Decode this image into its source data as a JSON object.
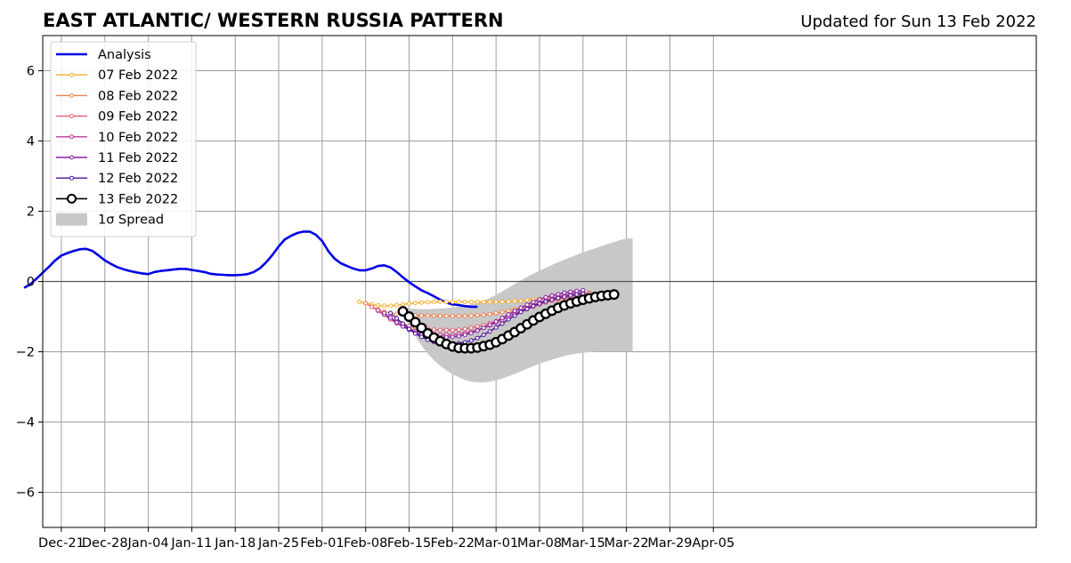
{
  "chart_data": {
    "type": "line",
    "title": "EAST ATLANTIC/ WESTERN RUSSIA PATTERN",
    "subtitle": "Updated for Sun 13 Feb 2022",
    "xlabel": "",
    "ylabel": "",
    "xlim": [
      -3,
      157
    ],
    "ylim": [
      -7,
      7
    ],
    "grid": true,
    "legend_position": "top-left",
    "x_unit": "days since Dec-21",
    "x_ticks": [
      {
        "x": 0,
        "label": "Dec-21"
      },
      {
        "x": 7,
        "label": "Dec-28"
      },
      {
        "x": 14,
        "label": "Jan-04"
      },
      {
        "x": 21,
        "label": "Jan-11"
      },
      {
        "x": 28,
        "label": "Jan-18"
      },
      {
        "x": 35,
        "label": "Jan-25"
      },
      {
        "x": 42,
        "label": "Feb-01"
      },
      {
        "x": 49,
        "label": "Feb-08"
      },
      {
        "x": 56,
        "label": "Feb-15"
      },
      {
        "x": 63,
        "label": "Feb-22"
      },
      {
        "x": 70,
        "label": "Mar-01"
      },
      {
        "x": 77,
        "label": "Mar-08"
      },
      {
        "x": 84,
        "label": "Mar-15"
      },
      {
        "x": 91,
        "label": "Mar-22"
      },
      {
        "x": 98,
        "label": "Mar-29"
      },
      {
        "x": 105,
        "label": "Apr-05"
      }
    ],
    "y_ticks": [
      {
        "y": -6,
        "label": "−6"
      },
      {
        "y": -4,
        "label": "−4"
      },
      {
        "y": -2,
        "label": "−2"
      },
      {
        "y": 0,
        "label": "0"
      },
      {
        "y": 2,
        "label": "2"
      },
      {
        "y": 4,
        "label": "4"
      },
      {
        "y": 6,
        "label": "6"
      }
    ],
    "analysis": {
      "name": "Analysis",
      "color": "#0000e6",
      "start_x": -6,
      "values": [
        -0.18,
        -0.08,
        0.08,
        0.25,
        0.42,
        0.6,
        0.74,
        0.81,
        0.87,
        0.92,
        0.93,
        0.87,
        0.74,
        0.6,
        0.5,
        0.41,
        0.35,
        0.3,
        0.26,
        0.23,
        0.21,
        0.27,
        0.3,
        0.32,
        0.34,
        0.36,
        0.36,
        0.33,
        0.3,
        0.27,
        0.22,
        0.2,
        0.19,
        0.18,
        0.18,
        0.19,
        0.21,
        0.27,
        0.38,
        0.55,
        0.76,
        1.0,
        1.2,
        1.3,
        1.38,
        1.42,
        1.42,
        1.33,
        1.15,
        0.86,
        0.65,
        0.52,
        0.44,
        0.37,
        0.32,
        0.32,
        0.37,
        0.44,
        0.46,
        0.4,
        0.27,
        0.12,
        -0.02,
        -0.14,
        -0.25,
        -0.33,
        -0.42,
        -0.52,
        -0.6,
        -0.65,
        -0.67,
        -0.7,
        -0.72,
        -0.72
      ]
    },
    "forecasts": [
      {
        "name": "07 Feb 2022",
        "color": "#f6ae2d",
        "start_x": 48,
        "values": [
          -0.58,
          -0.62,
          -0.65,
          -0.68,
          -0.69,
          -0.69,
          -0.67,
          -0.65,
          -0.63,
          -0.61,
          -0.6,
          -0.59,
          -0.58,
          -0.58,
          -0.58,
          -0.58,
          -0.58,
          -0.58,
          -0.58,
          -0.58,
          -0.58,
          -0.58,
          -0.58,
          -0.58,
          -0.57,
          -0.56,
          -0.55,
          -0.53,
          -0.52,
          -0.5,
          -0.48,
          -0.46,
          -0.44,
          -0.42,
          -0.4,
          -0.38,
          -0.36,
          -0.34
        ]
      },
      {
        "name": "08 Feb 2022",
        "color": "#f0804e",
        "start_x": 49,
        "values": [
          -0.62,
          -0.72,
          -0.8,
          -0.86,
          -0.9,
          -0.92,
          -0.94,
          -0.95,
          -0.96,
          -0.97,
          -0.97,
          -0.97,
          -0.98,
          -0.98,
          -0.98,
          -0.98,
          -0.98,
          -0.97,
          -0.96,
          -0.95,
          -0.93,
          -0.9,
          -0.87,
          -0.83,
          -0.79,
          -0.75,
          -0.71,
          -0.67,
          -0.63,
          -0.59,
          -0.55,
          -0.51,
          -0.47,
          -0.43,
          -0.39,
          -0.35,
          -0.32
        ]
      },
      {
        "name": "09 Feb 2022",
        "color": "#dd5f74",
        "start_x": 50,
        "values": [
          -0.72,
          -0.84,
          -0.95,
          -1.05,
          -1.13,
          -1.2,
          -1.26,
          -1.3,
          -1.33,
          -1.35,
          -1.37,
          -1.38,
          -1.38,
          -1.38,
          -1.37,
          -1.35,
          -1.32,
          -1.28,
          -1.24,
          -1.19,
          -1.13,
          -1.07,
          -1.0,
          -0.93,
          -0.86,
          -0.79,
          -0.72,
          -0.66,
          -0.6,
          -0.55,
          -0.5,
          -0.46,
          -0.42,
          -0.39,
          -0.36,
          -0.34
        ]
      },
      {
        "name": "10 Feb 2022",
        "color": "#bb3b8f",
        "start_x": 51,
        "values": [
          -0.82,
          -0.95,
          -1.08,
          -1.19,
          -1.28,
          -1.35,
          -1.41,
          -1.46,
          -1.49,
          -1.51,
          -1.52,
          -1.52,
          -1.52,
          -1.5,
          -1.47,
          -1.43,
          -1.38,
          -1.32,
          -1.25,
          -1.17,
          -1.09,
          -1.0,
          -0.91,
          -0.83,
          -0.75,
          -0.67,
          -0.6,
          -0.54,
          -0.48,
          -0.43,
          -0.39,
          -0.35,
          -0.32,
          -0.3
        ]
      },
      {
        "name": "11 Feb 2022",
        "color": "#8a1fa3",
        "start_x": 52,
        "values": [
          -0.9,
          -1.03,
          -1.16,
          -1.28,
          -1.38,
          -1.46,
          -1.52,
          -1.56,
          -1.58,
          -1.59,
          -1.59,
          -1.58,
          -1.56,
          -1.52,
          -1.47,
          -1.4,
          -1.32,
          -1.23,
          -1.14,
          -1.04,
          -0.94,
          -0.84,
          -0.75,
          -0.66,
          -0.58,
          -0.51,
          -0.45,
          -0.4,
          -0.36,
          -0.32,
          -0.29,
          -0.27,
          -0.25
        ]
      },
      {
        "name": "12 Feb 2022",
        "color": "#4b0fa0",
        "start_x": 53,
        "values": [
          -0.9,
          -1.05,
          -1.2,
          -1.35,
          -1.48,
          -1.58,
          -1.66,
          -1.72,
          -1.75,
          -1.77,
          -1.77,
          -1.76,
          -1.73,
          -1.68,
          -1.61,
          -1.52,
          -1.42,
          -1.31,
          -1.2,
          -1.08,
          -0.97,
          -0.87,
          -0.78,
          -0.7,
          -0.63,
          -0.57,
          -0.52,
          -0.47,
          -0.43,
          -0.4,
          -0.37,
          -0.35
        ]
      }
    ],
    "latest": {
      "name": "13 Feb 2022",
      "color": "#000000",
      "marker_fill": "#ffffff",
      "start_x": 55,
      "values": [
        -0.85,
        -1.0,
        -1.16,
        -1.32,
        -1.48,
        -1.6,
        -1.7,
        -1.78,
        -1.85,
        -1.89,
        -1.9,
        -1.9,
        -1.88,
        -1.84,
        -1.8,
        -1.73,
        -1.64,
        -1.54,
        -1.44,
        -1.33,
        -1.22,
        -1.11,
        -1.01,
        -0.92,
        -0.83,
        -0.75,
        -0.68,
        -0.62,
        -0.57,
        -0.52,
        -0.48,
        -0.44,
        -0.41,
        -0.39,
        -0.37
      ]
    },
    "spread": {
      "name": "1σ Spread",
      "color": "#c8c8c8",
      "start_x": 55,
      "upper": [
        -0.75,
        -0.77,
        -0.78,
        -0.79,
        -0.79,
        -0.78,
        -0.77,
        -0.76,
        -0.74,
        -0.72,
        -0.69,
        -0.65,
        -0.6,
        -0.54,
        -0.47,
        -0.38,
        -0.28,
        -0.18,
        -0.07,
        0.03,
        0.13,
        0.22,
        0.31,
        0.39,
        0.47,
        0.55,
        0.62,
        0.69,
        0.76,
        0.83,
        0.89,
        0.95,
        1.01,
        1.07,
        1.12,
        1.18,
        1.22,
        1.22
      ],
      "lower": [
        -0.95,
        -1.25,
        -1.55,
        -1.82,
        -2.05,
        -2.24,
        -2.4,
        -2.53,
        -2.64,
        -2.73,
        -2.8,
        -2.85,
        -2.87,
        -2.87,
        -2.85,
        -2.81,
        -2.76,
        -2.7,
        -2.63,
        -2.56,
        -2.48,
        -2.41,
        -2.34,
        -2.28,
        -2.22,
        -2.17,
        -2.12,
        -2.08,
        -2.05,
        -2.03,
        -2.01,
        -2.0,
        -2.0,
        -2.0,
        -2.0,
        -2.0,
        -2.0,
        -2.0
      ]
    },
    "legend": [
      {
        "kind": "analysis",
        "label": "Analysis"
      },
      {
        "kind": "forecast",
        "index": 0,
        "label": "07 Feb 2022"
      },
      {
        "kind": "forecast",
        "index": 1,
        "label": "08 Feb 2022"
      },
      {
        "kind": "forecast",
        "index": 2,
        "label": "09 Feb 2022"
      },
      {
        "kind": "forecast",
        "index": 3,
        "label": "10 Feb 2022"
      },
      {
        "kind": "forecast",
        "index": 4,
        "label": "11 Feb 2022"
      },
      {
        "kind": "forecast",
        "index": 5,
        "label": "12 Feb 2022"
      },
      {
        "kind": "latest",
        "label": "13 Feb 2022"
      },
      {
        "kind": "spread",
        "label": "1σ Spread"
      }
    ]
  }
}
